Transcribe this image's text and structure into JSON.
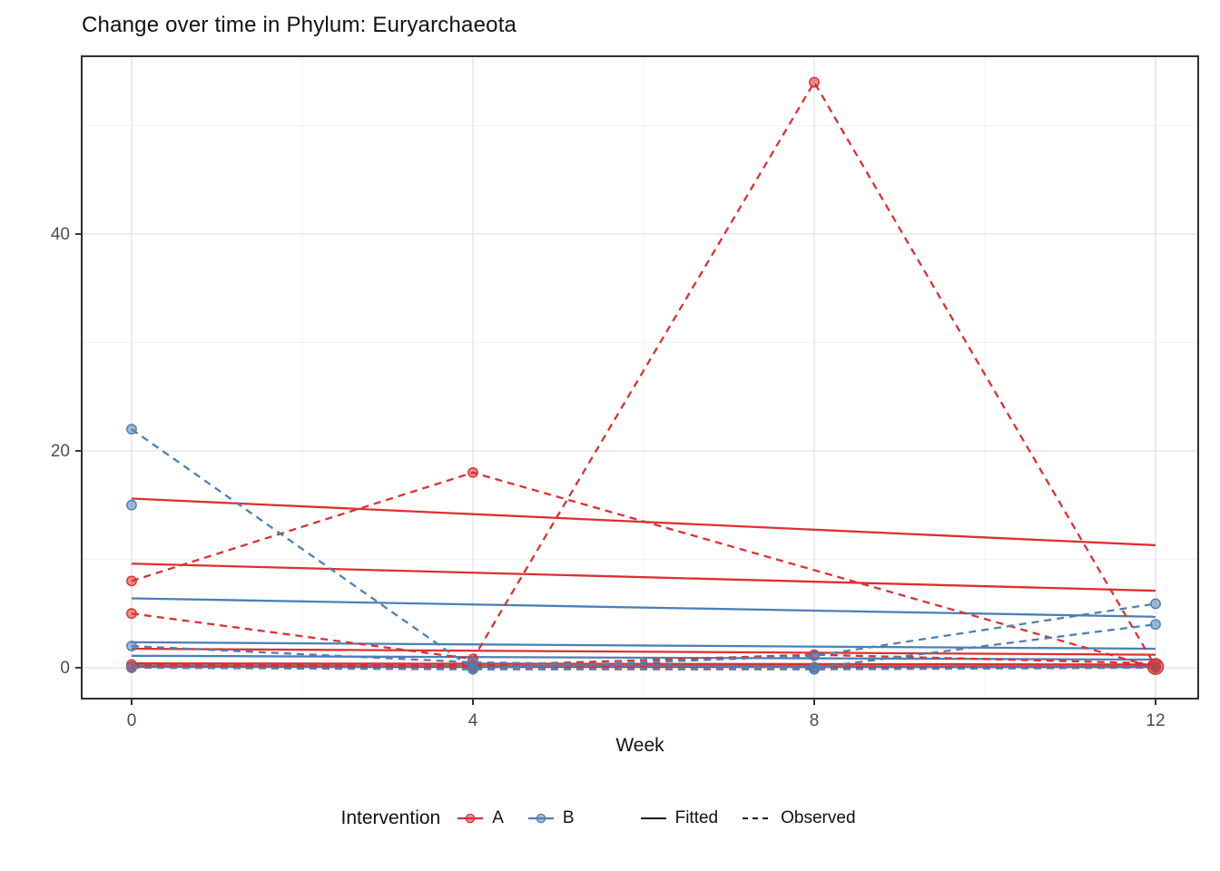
{
  "title": "Change over time in Phylum: Euryarchaeota",
  "legend": {
    "title": "Intervention",
    "color_items": [
      {
        "label": "A",
        "color_key": "A"
      },
      {
        "label": "B",
        "color_key": "B"
      }
    ],
    "linetype_items": [
      {
        "label": "Fitted",
        "dash": "solid"
      },
      {
        "label": "Observed",
        "dash": "dashed"
      }
    ]
  },
  "chart_data": {
    "type": "line",
    "title": "Change over time in Phylum: Euryarchaeota",
    "xlabel": "Week",
    "ylabel": "",
    "x_ticks": [
      0,
      4,
      8,
      12
    ],
    "y_ticks": [
      0,
      20,
      40
    ],
    "x_minor": [
      2,
      6,
      10
    ],
    "y_minor": [
      10,
      30,
      50
    ],
    "xlim": [
      -0.585,
      12.5
    ],
    "ylim": [
      -2.85,
      56.4
    ],
    "grid": true,
    "legend_position": "bottom",
    "colors": {
      "A": "#DC3030",
      "B": "#4C80B4"
    },
    "axis_text_color": "#4d4d4d",
    "grid_major_color": "#e4e4e4",
    "grid_minor_color": "#f2f2f2",
    "panel_border_color": "#2f2f2f",
    "series": [
      {
        "id": "A-fitted-1",
        "intervention": "A",
        "kind": "fitted",
        "points": [
          [
            0,
            15.6
          ],
          [
            12,
            11.3
          ]
        ]
      },
      {
        "id": "A-fitted-2",
        "intervention": "A",
        "kind": "fitted",
        "points": [
          [
            0,
            9.6
          ],
          [
            12,
            7.1
          ]
        ]
      },
      {
        "id": "A-fitted-3",
        "intervention": "A",
        "kind": "fitted",
        "points": [
          [
            0,
            1.75
          ],
          [
            12,
            1.2
          ]
        ]
      },
      {
        "id": "A-fitted-4",
        "intervention": "A",
        "kind": "fitted",
        "points": [
          [
            0,
            0.4
          ],
          [
            12,
            0.3
          ]
        ]
      },
      {
        "id": "A-fitted-5",
        "intervention": "A",
        "kind": "fitted",
        "points": [
          [
            0,
            0.08
          ],
          [
            12,
            0.06
          ]
        ]
      },
      {
        "id": "B-fitted-1",
        "intervention": "B",
        "kind": "fitted",
        "points": [
          [
            0,
            6.4
          ],
          [
            12,
            4.7
          ]
        ]
      },
      {
        "id": "B-fitted-2",
        "intervention": "B",
        "kind": "fitted",
        "points": [
          [
            0,
            2.35
          ],
          [
            12,
            1.75
          ]
        ]
      },
      {
        "id": "B-fitted-3",
        "intervention": "B",
        "kind": "fitted",
        "points": [
          [
            0,
            1.1
          ],
          [
            12,
            0.75
          ]
        ]
      },
      {
        "id": "B-fitted-4",
        "intervention": "B",
        "kind": "fitted",
        "points": [
          [
            0,
            0.2
          ],
          [
            12,
            0.12
          ]
        ]
      },
      {
        "id": "A-observed-1",
        "intervention": "A",
        "kind": "observed",
        "points": [
          [
            0,
            8
          ],
          [
            4,
            18
          ],
          [
            12,
            0
          ]
        ]
      },
      {
        "id": "A-observed-2",
        "intervention": "A",
        "kind": "observed",
        "points": [
          [
            0,
            5
          ],
          [
            4,
            0.8
          ],
          [
            8,
            54
          ],
          [
            12,
            0.1
          ]
        ]
      },
      {
        "id": "A-observed-3",
        "intervention": "A",
        "kind": "observed",
        "points": [
          [
            0,
            0.3
          ],
          [
            4,
            0.2
          ],
          [
            8,
            1.2
          ],
          [
            12,
            0.4
          ]
        ]
      },
      {
        "id": "A-observed-4",
        "intervention": "A",
        "kind": "observed",
        "points": [
          [
            0,
            0.1
          ],
          [
            4,
            0.05
          ],
          [
            8,
            0.05
          ],
          [
            12,
            0.05
          ]
        ]
      },
      {
        "id": "B-observed-1",
        "intervention": "B",
        "kind": "observed",
        "points": [
          [
            0,
            22
          ],
          [
            4,
            -0.1
          ],
          [
            8,
            1.1
          ],
          [
            12,
            5.9
          ]
        ]
      },
      {
        "id": "B-observed-2",
        "intervention": "B",
        "kind": "observed",
        "points": [
          [
            0,
            2
          ],
          [
            4,
            0.5
          ],
          [
            8,
            0
          ],
          [
            12,
            4
          ]
        ]
      },
      {
        "id": "B-observed-3",
        "intervention": "B",
        "kind": "observed",
        "points": [
          [
            0,
            15
          ]
        ]
      },
      {
        "id": "B-observed-4",
        "intervention": "B",
        "kind": "observed",
        "points": [
          [
            0,
            0
          ],
          [
            4,
            -0.15
          ],
          [
            8,
            -0.15
          ],
          [
            12,
            0
          ]
        ]
      }
    ],
    "emphasis_marker": {
      "x": 12,
      "y": 0.1,
      "intervention": "A",
      "r": 8.5
    }
  }
}
